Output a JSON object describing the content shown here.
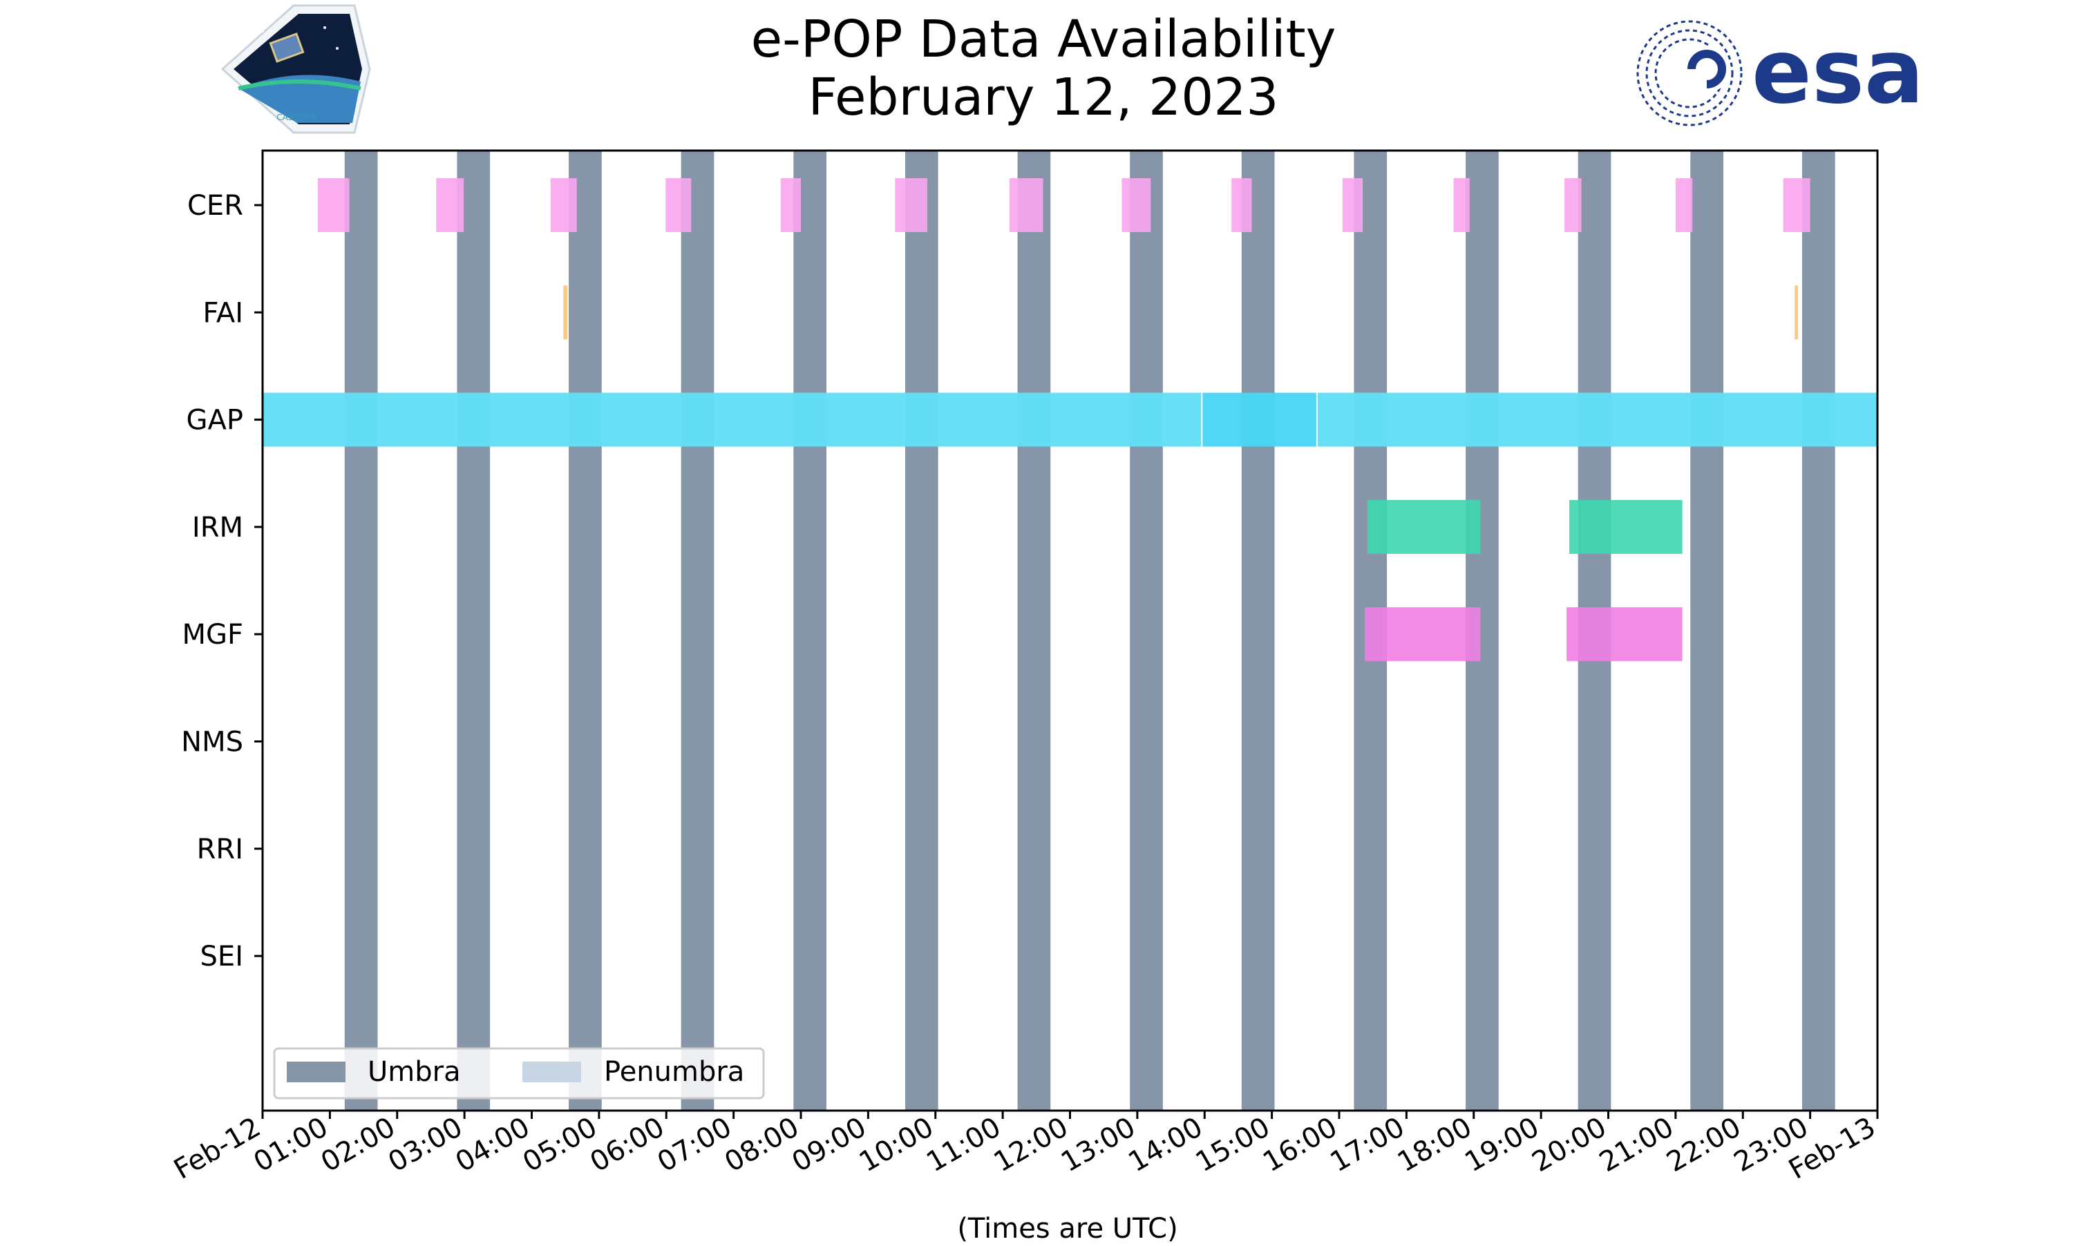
{
  "chart_data": {
    "type": "timeline",
    "title": "e-POP Data Availability",
    "subtitle": "February 12, 2023",
    "xlabel": "(Times are UTC)",
    "x_range_hours": [
      0,
      24
    ],
    "x_tick_labels": [
      "Feb-12",
      "01:00",
      "02:00",
      "03:00",
      "04:00",
      "05:00",
      "06:00",
      "07:00",
      "08:00",
      "09:00",
      "10:00",
      "11:00",
      "12:00",
      "13:00",
      "14:00",
      "15:00",
      "16:00",
      "17:00",
      "18:00",
      "19:00",
      "20:00",
      "21:00",
      "22:00",
      "23:00",
      "Feb-13"
    ],
    "instruments": [
      "CER",
      "FAI",
      "GAP",
      "IRM",
      "MGF",
      "NMS",
      "RRI",
      "SEI"
    ],
    "umbra_color": "#8696a8",
    "penumbra_color": "#c8d5e4",
    "umbra_intervals": [
      [
        1.22,
        1.71
      ],
      [
        2.89,
        3.38
      ],
      [
        4.55,
        5.04
      ],
      [
        6.22,
        6.71
      ],
      [
        7.89,
        8.38
      ],
      [
        9.55,
        10.04
      ],
      [
        11.22,
        11.71
      ],
      [
        12.89,
        13.38
      ],
      [
        14.55,
        15.04
      ],
      [
        16.22,
        16.71
      ],
      [
        17.88,
        18.37
      ],
      [
        19.55,
        20.04
      ],
      [
        21.22,
        21.71
      ],
      [
        22.88,
        23.37
      ]
    ],
    "series": [
      {
        "name": "CER",
        "color": "#f9a5ee",
        "intervals": [
          [
            0.82,
            1.29
          ],
          [
            2.58,
            2.99
          ],
          [
            4.28,
            4.67
          ],
          [
            5.99,
            6.37
          ],
          [
            7.7,
            8.0
          ],
          [
            9.4,
            9.88
          ],
          [
            11.1,
            11.6
          ],
          [
            12.77,
            13.2
          ],
          [
            14.4,
            14.7
          ],
          [
            16.05,
            16.35
          ],
          [
            17.7,
            17.94
          ],
          [
            19.35,
            19.6
          ],
          [
            21.0,
            21.25
          ],
          [
            22.6,
            23.0
          ]
        ]
      },
      {
        "name": "FAI",
        "color": "#f7c77a",
        "intervals": [
          [
            4.47,
            4.53
          ],
          [
            22.77,
            22.82
          ]
        ]
      },
      {
        "name": "GAP",
        "color": "#62dff6",
        "highlight_color": "#4ad6f6",
        "intervals": [
          [
            0,
            13.96
          ],
          [
            13.96,
            15.67
          ],
          [
            15.67,
            24
          ]
        ]
      },
      {
        "name": "IRM",
        "color": "#3dd7ae",
        "intervals": [
          [
            16.42,
            18.1
          ],
          [
            19.42,
            21.1
          ]
        ]
      },
      {
        "name": "MGF",
        "color": "#f07ee3",
        "intervals": [
          [
            16.38,
            18.1
          ],
          [
            19.38,
            21.1
          ]
        ]
      },
      {
        "name": "NMS",
        "color": "#999999",
        "intervals": []
      },
      {
        "name": "RRI",
        "color": "#999999",
        "intervals": []
      },
      {
        "name": "SEI",
        "color": "#999999",
        "intervals": []
      }
    ],
    "legend": {
      "position": "lower-left",
      "entries": [
        "Umbra",
        "Penumbra"
      ]
    }
  },
  "logos": {
    "left": "CASSIOPE",
    "right": "esa",
    "esa_color": "#1c3a89",
    "cassiope_color": "#2e9ab0"
  }
}
